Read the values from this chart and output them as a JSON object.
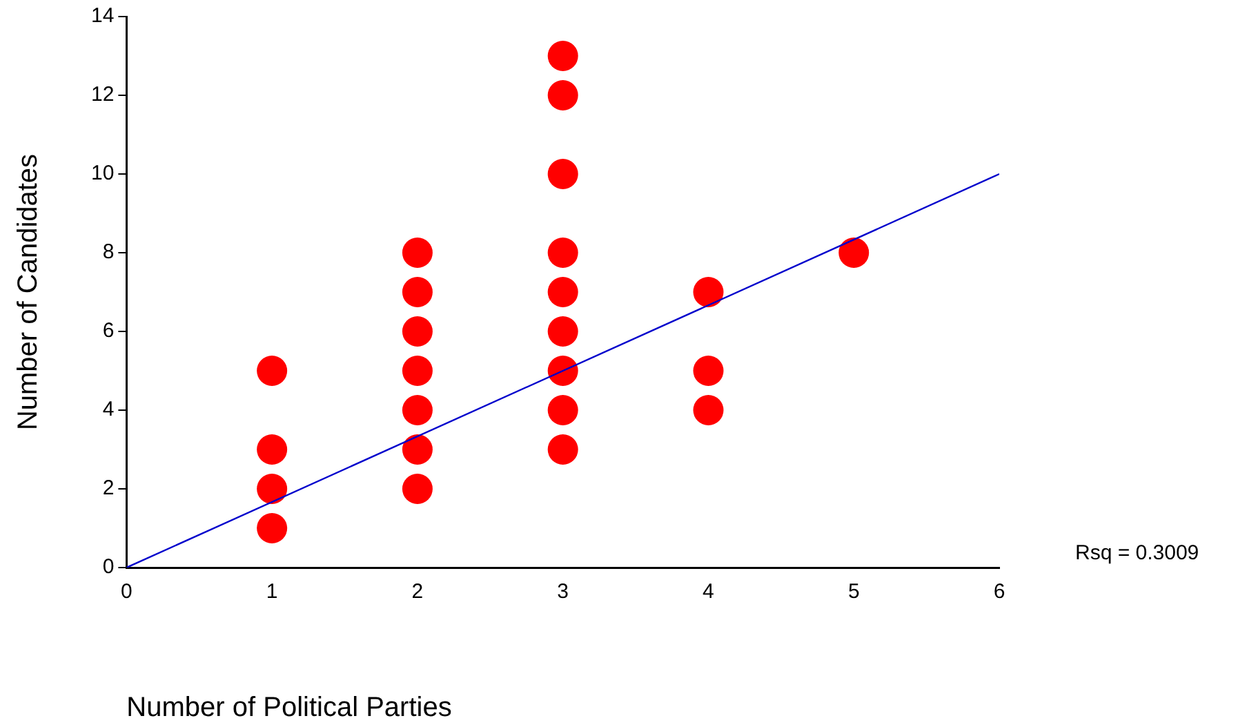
{
  "chart_data": {
    "type": "scatter",
    "xlabel": "Number of Political Parties",
    "ylabel": "Number of Candidates",
    "xlim": [
      0,
      6
    ],
    "xticks": [
      0,
      1,
      2,
      3,
      4,
      5,
      6
    ],
    "ylim": [
      0,
      14
    ],
    "yticks": [
      0,
      2,
      4,
      6,
      8,
      10,
      12,
      14
    ],
    "grid": false,
    "legend": false,
    "marker": "circle",
    "series": [
      {
        "color": "#ff0000",
        "x": [
          1,
          1,
          1,
          1,
          2,
          2,
          2,
          2,
          2,
          2,
          2,
          3,
          3,
          3,
          3,
          3,
          3,
          3,
          3,
          3,
          4,
          4,
          4,
          5
        ],
        "values": [
          5,
          3,
          2,
          1,
          8,
          7,
          6,
          5,
          4,
          3,
          2,
          13,
          12,
          10,
          8,
          7,
          6,
          5,
          4,
          3,
          7,
          5,
          4,
          8
        ]
      },
      {
        "type": "line",
        "color": "#0000cc",
        "x": [
          0,
          6
        ],
        "values": [
          0,
          10
        ],
        "marker": "none"
      }
    ],
    "annotations": [
      "Rsq = 0.3009"
    ]
  }
}
